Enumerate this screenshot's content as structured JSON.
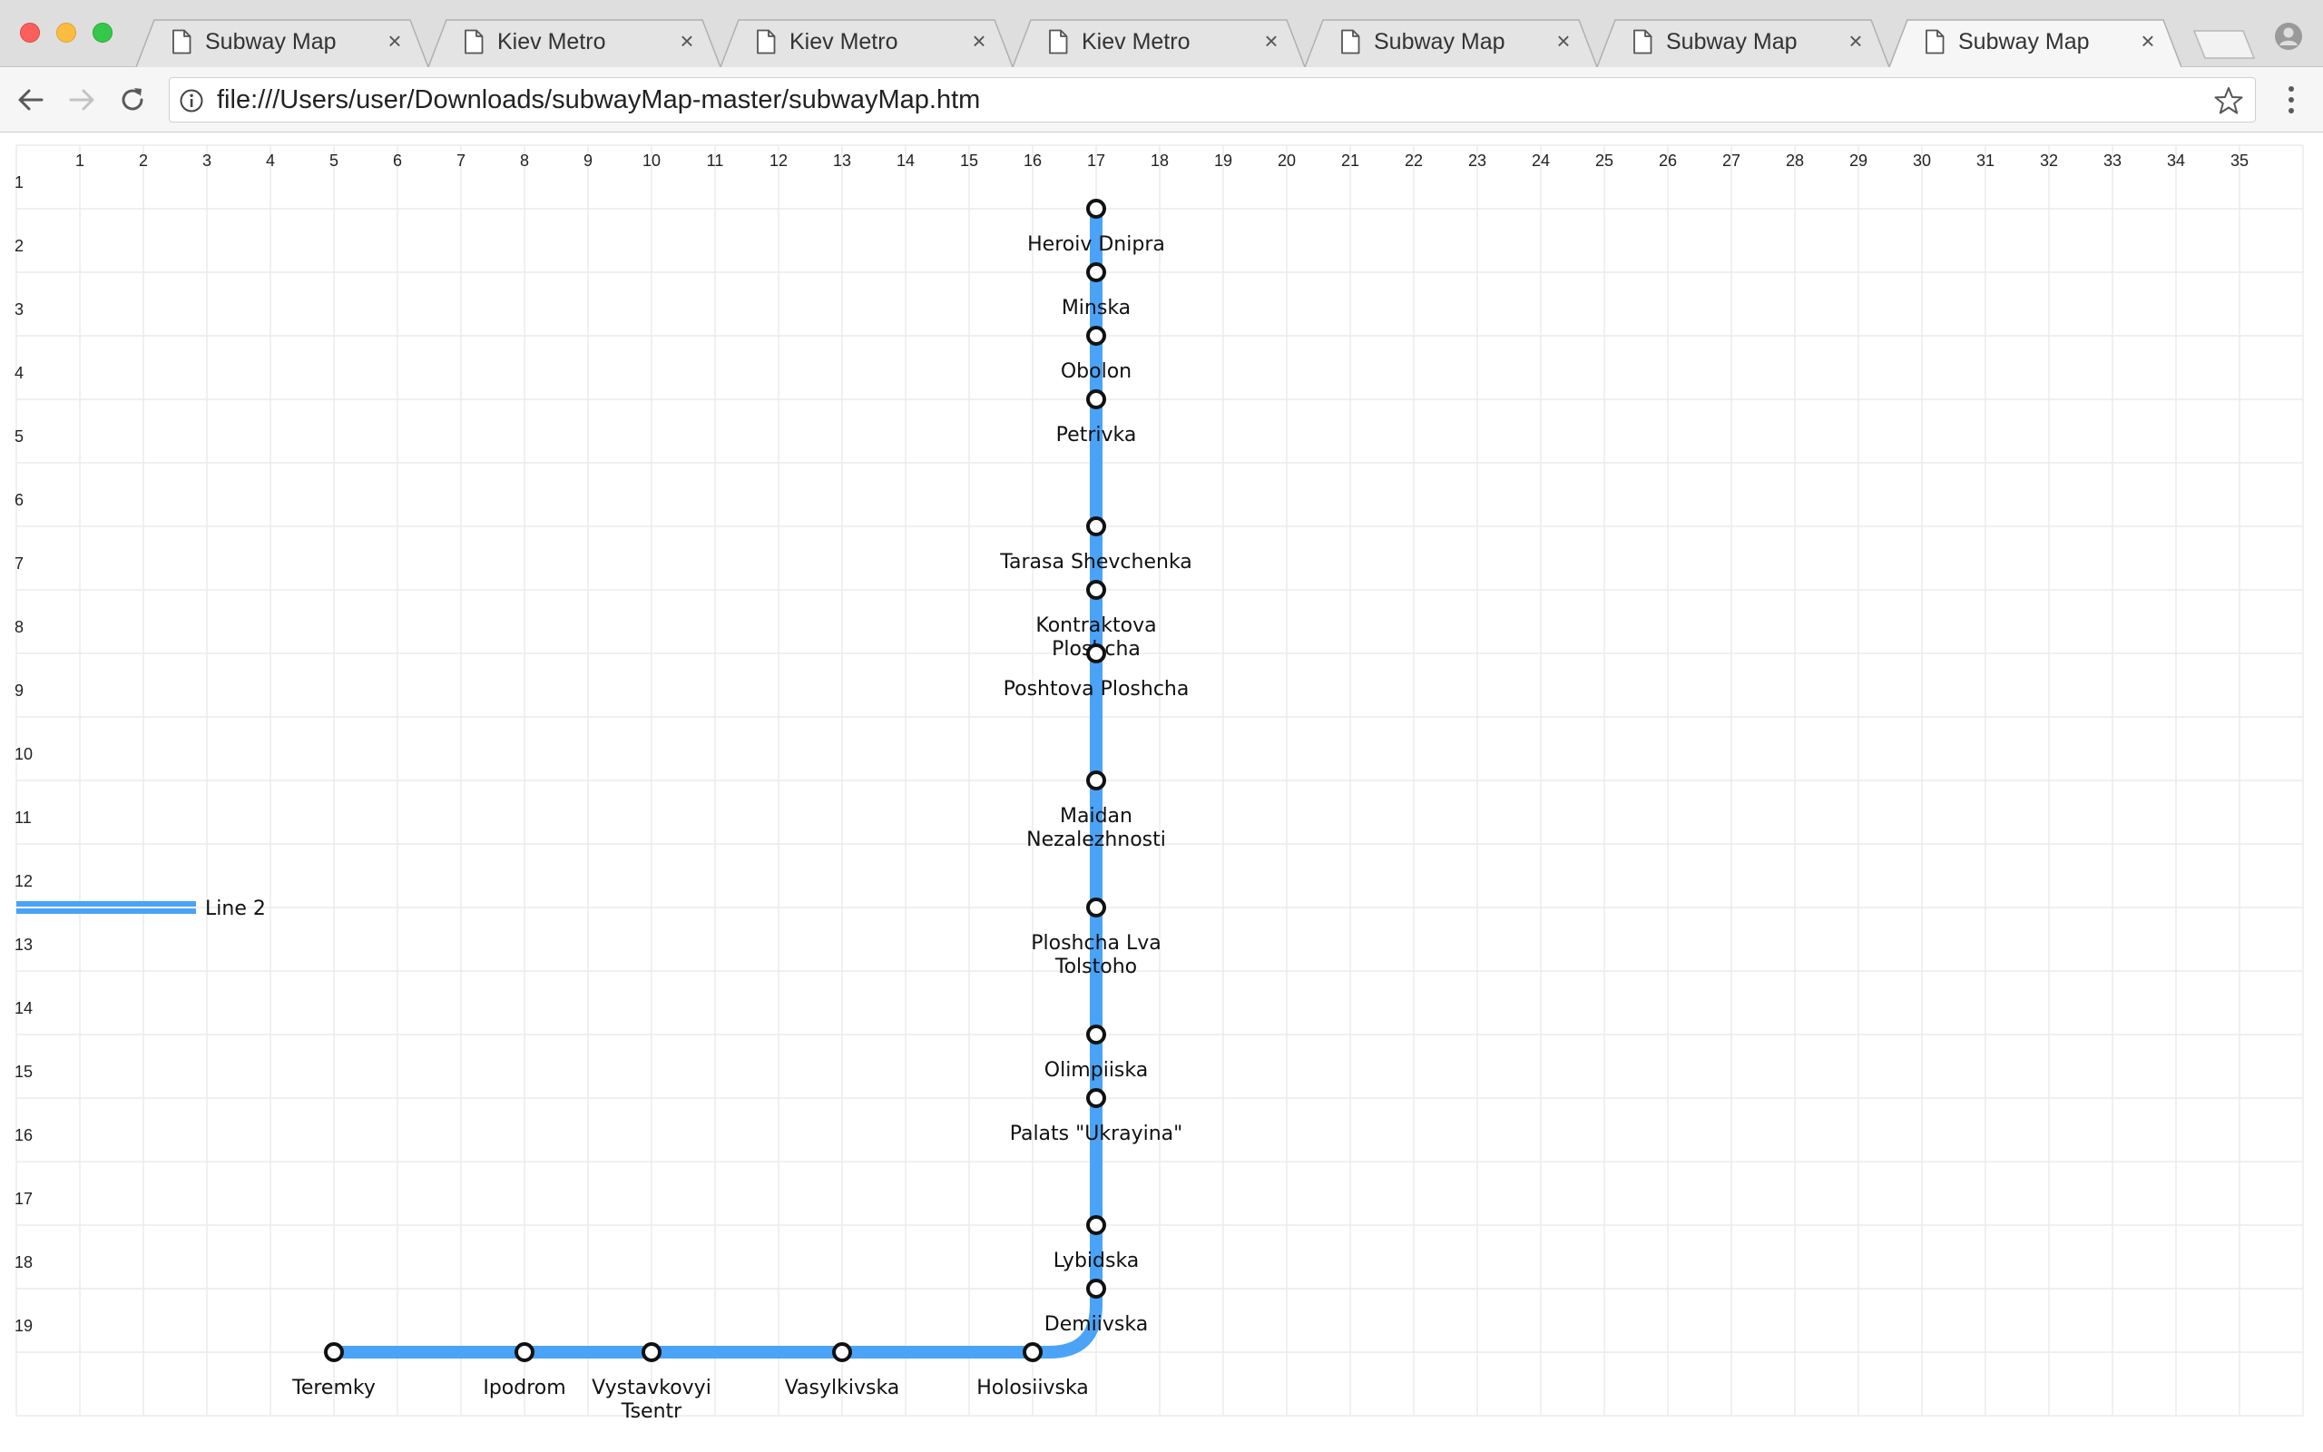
{
  "colors": {
    "line": "#4aa3f7",
    "grid": "#ebebeb",
    "station_fill": "#ffffff",
    "station_stroke": "#111111"
  },
  "tabs": [
    {
      "title": "Subway Map",
      "active": false
    },
    {
      "title": "Kiev Metro",
      "active": false
    },
    {
      "title": "Kiev Metro",
      "active": false
    },
    {
      "title": "Kiev Metro",
      "active": false
    },
    {
      "title": "Subway Map",
      "active": false
    },
    {
      "title": "Subway Map",
      "active": false
    },
    {
      "title": "Subway Map",
      "active": true
    }
  ],
  "toolbar": {
    "url": "file:///Users/user/Downloads/subwayMap-master/subwayMap.htm"
  },
  "map": {
    "columns": [
      "1",
      "2",
      "3",
      "4",
      "5",
      "6",
      "7",
      "8",
      "9",
      "10",
      "11",
      "12",
      "13",
      "14",
      "15",
      "16",
      "17",
      "18",
      "19",
      "20",
      "21",
      "22",
      "23",
      "24",
      "25",
      "26",
      "27",
      "28",
      "29",
      "30",
      "31",
      "32",
      "33",
      "34",
      "35"
    ],
    "rows": [
      "1",
      "2",
      "3",
      "4",
      "5",
      "6",
      "7",
      "8",
      "9",
      "10",
      "11",
      "12",
      "13",
      "14",
      "15",
      "16",
      "17",
      "18",
      "19"
    ],
    "legend": {
      "label": "Line 2"
    },
    "stations": [
      {
        "name": "Heroiv Dnipra",
        "col": 17,
        "row": 1
      },
      {
        "name": "Minska",
        "col": 17,
        "row": 2
      },
      {
        "name": "Obolon",
        "col": 17,
        "row": 3
      },
      {
        "name": "Petrivka",
        "col": 17,
        "row": 4
      },
      {
        "name": "Tarasa Shevchenka",
        "col": 17,
        "row": 6
      },
      {
        "name": "Kontraktova Ploshcha",
        "col": 17,
        "row": 7
      },
      {
        "name": "Poshtova Ploshcha",
        "col": 17,
        "row": 8
      },
      {
        "name": "Maidan Nezalezhnosti",
        "col": 17,
        "row": 10
      },
      {
        "name": "Ploshcha Lva Tolstoho",
        "col": 17,
        "row": 12
      },
      {
        "name": "Olimpiiska",
        "col": 17,
        "row": 14
      },
      {
        "name": "Palats \"Ukrayina\"",
        "col": 17,
        "row": 15
      },
      {
        "name": "Lybidska",
        "col": 17,
        "row": 17
      },
      {
        "name": "Demiivska",
        "col": 17,
        "row": 18
      },
      {
        "name": "Holosiivska",
        "col": 16,
        "row": 19
      },
      {
        "name": "Vasylkivska",
        "col": 13,
        "row": 19
      },
      {
        "name": "Vystavkovyi Tsentr",
        "col": 10,
        "row": 19
      },
      {
        "name": "Ipodrom",
        "col": 8,
        "row": 19
      },
      {
        "name": "Teremky",
        "col": 5,
        "row": 19
      }
    ]
  }
}
